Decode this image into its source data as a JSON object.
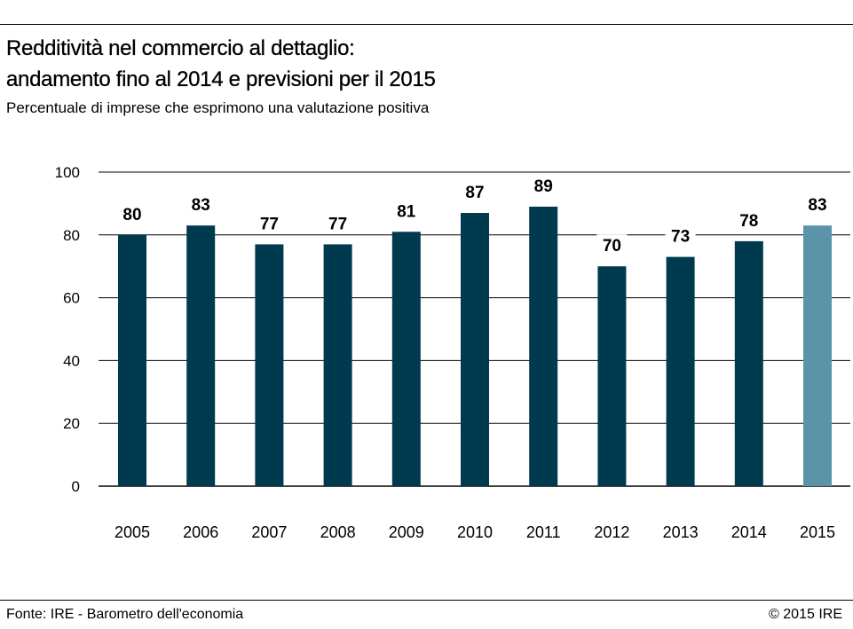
{
  "header": {
    "title_line1": "Redditività nel commercio al dettaglio:",
    "title_line2": "andamento fino al 2014 e previsioni per il 2015",
    "subtitle": "Percentuale di imprese che esprimono una valutazione positiva"
  },
  "footer": {
    "source": "Fonte: IRE - Barometro dell'economia",
    "copyright": "© 2015 IRE"
  },
  "colors": {
    "actual": "#003a4f",
    "forecast": "#5b93a8",
    "gridline": "#000000"
  },
  "chart_data": {
    "type": "bar",
    "title": "Redditività nel commercio al dettaglio: andamento fino al 2014 e previsioni per il 2015",
    "subtitle": "Percentuale di imprese che esprimono una valutazione positiva",
    "categories": [
      "2005",
      "2006",
      "2007",
      "2008",
      "2009",
      "2010",
      "2011",
      "2012",
      "2013",
      "2014",
      "2015"
    ],
    "values": [
      80,
      83,
      77,
      77,
      81,
      87,
      89,
      70,
      73,
      78,
      83
    ],
    "forecast_categories": [
      "2015"
    ],
    "ylim": [
      0,
      100
    ],
    "yticks": [
      0,
      20,
      40,
      60,
      80,
      100
    ],
    "grid": true,
    "legend": "none",
    "data_labels": true,
    "xlabel": "",
    "ylabel": ""
  }
}
